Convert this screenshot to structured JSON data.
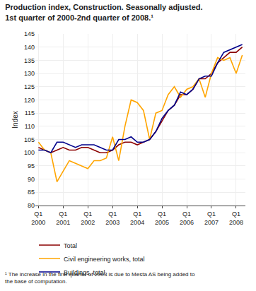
{
  "chart_data": {
    "type": "line",
    "title": "Production index, Construction. Seasonally adjusted.",
    "subtitle": "1st quarter of 2000-2nd quarter of 2008.¹",
    "ylabel": "Index",
    "annotations": [
      "¹ The increase in the first quarter of 2003 is due to Mesta AS being added to\nthe base of computation."
    ],
    "categories": [
      "Q1\n2000",
      null,
      null,
      null,
      "Q1\n2001",
      null,
      null,
      null,
      "Q1\n2002",
      null,
      null,
      null,
      "Q1\n2003",
      null,
      null,
      null,
      "Q1\n2004",
      null,
      null,
      null,
      "Q1\n2005",
      null,
      null,
      null,
      "Q1\n2006",
      null,
      null,
      null,
      "Q1\n2007",
      null,
      null,
      null,
      "Q1\n2008",
      null
    ],
    "series": [
      {
        "name": "Total",
        "color": "#8B0000",
        "values": [
          102,
          101,
          100,
          101,
          102,
          101,
          101,
          102,
          102,
          101,
          100,
          100,
          101,
          103,
          104,
          104,
          103,
          104,
          105,
          108,
          112,
          116,
          118,
          122,
          122,
          124,
          128,
          128,
          130,
          134,
          136,
          138,
          138,
          140
        ]
      },
      {
        "name": "Civil engineering works, total",
        "color": "#FFA500",
        "values": [
          104,
          101,
          100,
          89,
          93,
          97,
          96,
          95,
          94,
          97,
          97,
          98,
          106,
          97,
          110,
          120,
          119,
          116,
          105,
          115,
          116,
          122,
          125,
          121,
          124,
          125,
          128,
          121,
          130,
          136,
          135,
          136,
          130,
          137
        ]
      },
      {
        "name": "Buildings, total",
        "color": "#00008B",
        "values": [
          101,
          101,
          100,
          104,
          104,
          103,
          102,
          103,
          103,
          103,
          102,
          101,
          101,
          105,
          105,
          106,
          104,
          104,
          105,
          108,
          113,
          116,
          118,
          123,
          122,
          124,
          128,
          129,
          129,
          134,
          138,
          139,
          140,
          141
        ]
      }
    ],
    "ylim": [
      80,
      145
    ],
    "yticks": [
      80,
      85,
      90,
      95,
      100,
      105,
      110,
      115,
      120,
      125,
      130,
      135,
      140,
      145
    ],
    "grid": true,
    "legend": "bottom"
  }
}
